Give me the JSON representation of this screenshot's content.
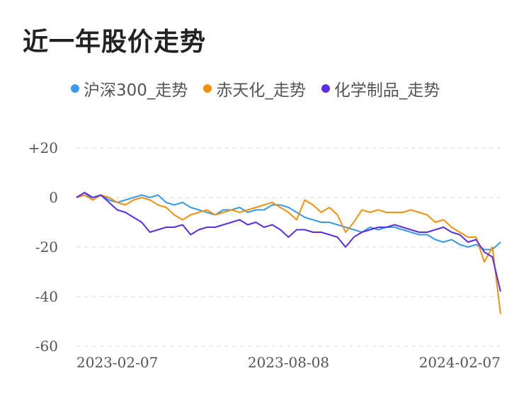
{
  "title": "近一年股价走势",
  "chart_data": {
    "type": "line",
    "title": "近一年股价走势",
    "xlabel": "",
    "ylabel": "",
    "x_ticks": [
      "2023-02-07",
      "2023-08-08",
      "2024-02-07"
    ],
    "y_ticks": [
      20,
      0,
      -20,
      -40,
      -60
    ],
    "y_tick_labels": [
      "+20",
      "0",
      "-20",
      "-40",
      "-60"
    ],
    "ylim": [
      -60,
      20
    ],
    "grid": "horizontal-dashed",
    "legend_position": "top",
    "x": [
      "2023-02-07",
      "2023-02-14",
      "2023-02-21",
      "2023-02-28",
      "2023-03-07",
      "2023-03-14",
      "2023-03-21",
      "2023-03-28",
      "2023-04-04",
      "2023-04-11",
      "2023-04-18",
      "2023-04-25",
      "2023-05-02",
      "2023-05-09",
      "2023-05-16",
      "2023-05-23",
      "2023-05-30",
      "2023-06-06",
      "2023-06-13",
      "2023-06-20",
      "2023-06-27",
      "2023-07-04",
      "2023-07-11",
      "2023-07-18",
      "2023-07-25",
      "2023-08-01",
      "2023-08-08",
      "2023-08-15",
      "2023-08-22",
      "2023-08-29",
      "2023-09-05",
      "2023-09-12",
      "2023-09-19",
      "2023-09-26",
      "2023-10-03",
      "2023-10-10",
      "2023-10-17",
      "2023-10-24",
      "2023-10-31",
      "2023-11-07",
      "2023-11-14",
      "2023-11-21",
      "2023-11-28",
      "2023-12-05",
      "2023-12-12",
      "2023-12-19",
      "2023-12-26",
      "2024-01-02",
      "2024-01-09",
      "2024-01-16",
      "2024-01-23",
      "2024-01-30",
      "2024-02-07"
    ],
    "series": [
      {
        "name": "沪深300_走势",
        "color": "#3a9ae8",
        "values": [
          0,
          2,
          -1,
          1,
          -1,
          -2,
          -1,
          0,
          1,
          0,
          1,
          -2,
          -3,
          -2,
          -4,
          -5,
          -6,
          -7,
          -5,
          -5,
          -4,
          -6,
          -5,
          -5,
          -3,
          -3,
          -4,
          -6,
          -8,
          -9,
          -10,
          -10,
          -11,
          -12,
          -13,
          -14,
          -12,
          -13,
          -12,
          -12,
          -13,
          -14,
          -15,
          -15,
          -17,
          -18,
          -17,
          -19,
          -20,
          -19,
          -21,
          -21,
          -18
        ]
      },
      {
        "name": "赤天化_走势",
        "color": "#f0920f",
        "values": [
          0,
          1,
          -1,
          1,
          0,
          -2,
          -3,
          -1,
          0,
          -1,
          -3,
          -4,
          -7,
          -9,
          -7,
          -6,
          -5,
          -7,
          -6,
          -5,
          -6,
          -5,
          -4,
          -3,
          -2,
          -4,
          -6,
          -9,
          -1,
          -3,
          -6,
          -4,
          -7,
          -14,
          -10,
          -5,
          -6,
          -5,
          -6,
          -6,
          -6,
          -5,
          -6,
          -7,
          -10,
          -9,
          -12,
          -14,
          -16,
          -16,
          -26,
          -20,
          -47
        ]
      },
      {
        "name": "化学制品_走势",
        "color": "#5a2ee6",
        "values": [
          0,
          2,
          0,
          1,
          -2,
          -5,
          -6,
          -8,
          -10,
          -14,
          -13,
          -12,
          -12,
          -11,
          -15,
          -13,
          -12,
          -12,
          -11,
          -10,
          -9,
          -11,
          -10,
          -12,
          -11,
          -13,
          -16,
          -13,
          -13,
          -14,
          -14,
          -15,
          -16,
          -20,
          -16,
          -14,
          -13,
          -12,
          -12,
          -11,
          -12,
          -13,
          -14,
          -14,
          -13,
          -12,
          -14,
          -15,
          -18,
          -17,
          -22,
          -24,
          -38
        ]
      }
    ]
  }
}
